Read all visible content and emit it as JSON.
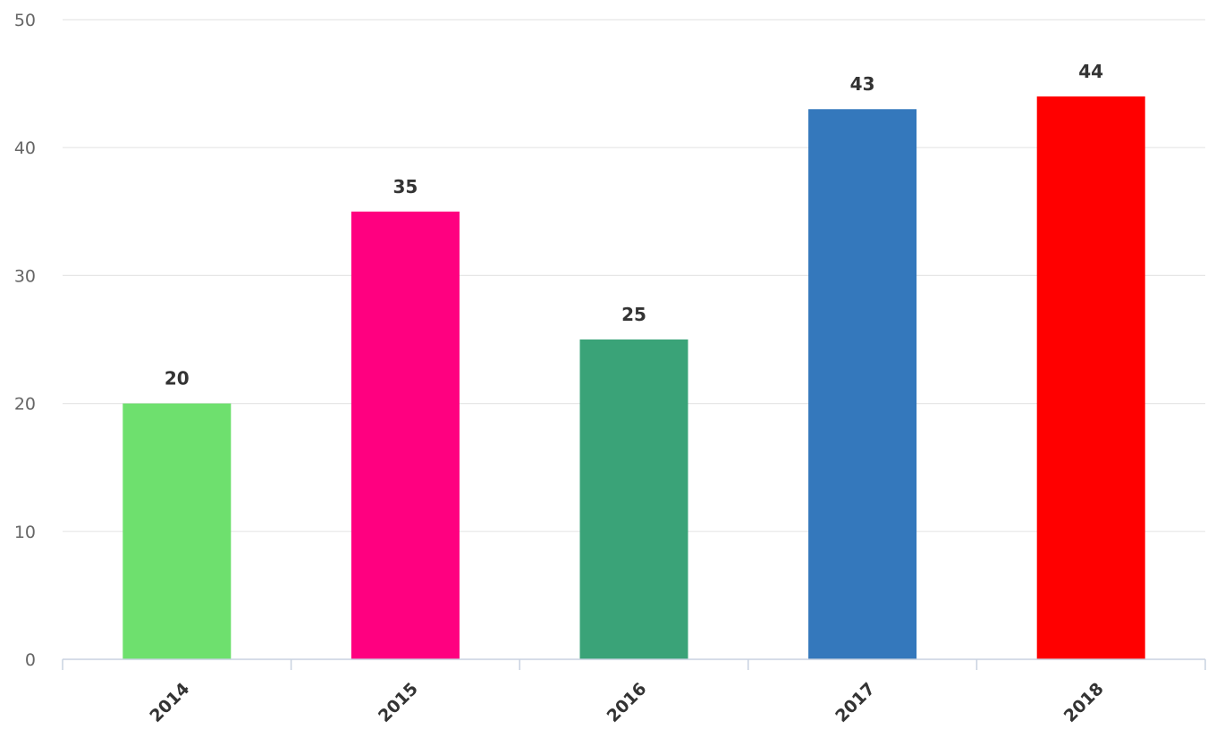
{
  "chart_data": {
    "type": "bar",
    "title": "",
    "xlabel": "",
    "ylabel": "",
    "categories": [
      "2014",
      "2015",
      "2016",
      "2017",
      "2018"
    ],
    "values": [
      20,
      35,
      25,
      43,
      44
    ],
    "colors": [
      "#6ee06e",
      "#ff0080",
      "#3aa378",
      "#3478bc",
      "#ff0000"
    ],
    "ylim": [
      0,
      50
    ],
    "yticks": [
      0,
      10,
      20,
      30,
      40,
      50
    ],
    "grid": true,
    "data_labels": true,
    "legend": "none",
    "gridline_color": "#e6e6e6",
    "axis_color": "#c8d2e0"
  }
}
